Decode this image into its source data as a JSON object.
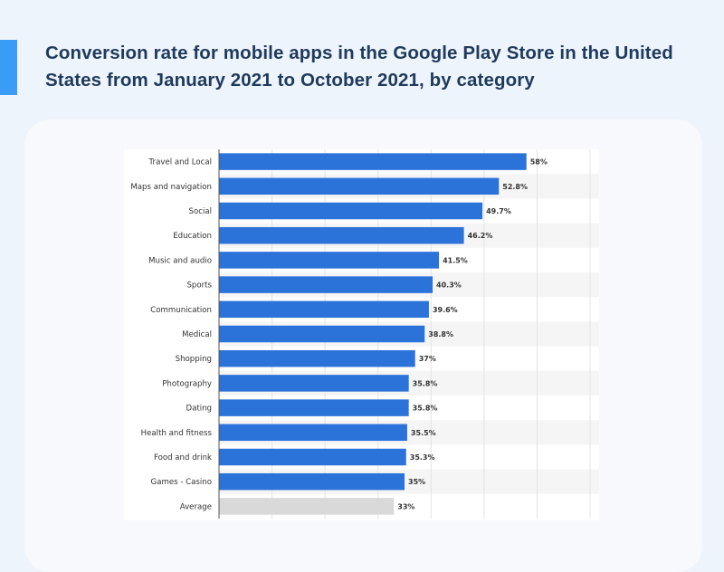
{
  "page": {
    "title": "Conversion rate for mobile apps in the Google Play Store in the United States from January 2021 to October 2021, by category"
  },
  "colors": {
    "bar": "#2b72d9",
    "average_bar": "#d9d9d9",
    "accent": "#3b9cf5",
    "title": "#1f3a5c"
  },
  "chart_data": {
    "type": "bar",
    "orientation": "horizontal",
    "categories": [
      "Travel and Local",
      "Maps and navigation",
      "Social",
      "Education",
      "Music and audio",
      "Sports",
      "Communication",
      "Medical",
      "Shopping",
      "Photography",
      "Dating",
      "Health and fitness",
      "Food and drink",
      "Games - Casino",
      "Average"
    ],
    "values": [
      58,
      52.8,
      49.7,
      46.2,
      41.5,
      40.3,
      39.6,
      38.8,
      37,
      35.8,
      35.8,
      35.5,
      35.3,
      35,
      33
    ],
    "value_labels": [
      "58%",
      "52.8%",
      "49.7%",
      "46.2%",
      "41.5%",
      "40.3%",
      "39.6%",
      "38.8%",
      "37%",
      "35.8%",
      "35.8%",
      "35.5%",
      "35.3%",
      "35%",
      "33%"
    ],
    "highlight_category": "Average",
    "xlim": [
      0,
      70
    ],
    "grid": "vertical",
    "xlabel": "",
    "ylabel": ""
  }
}
